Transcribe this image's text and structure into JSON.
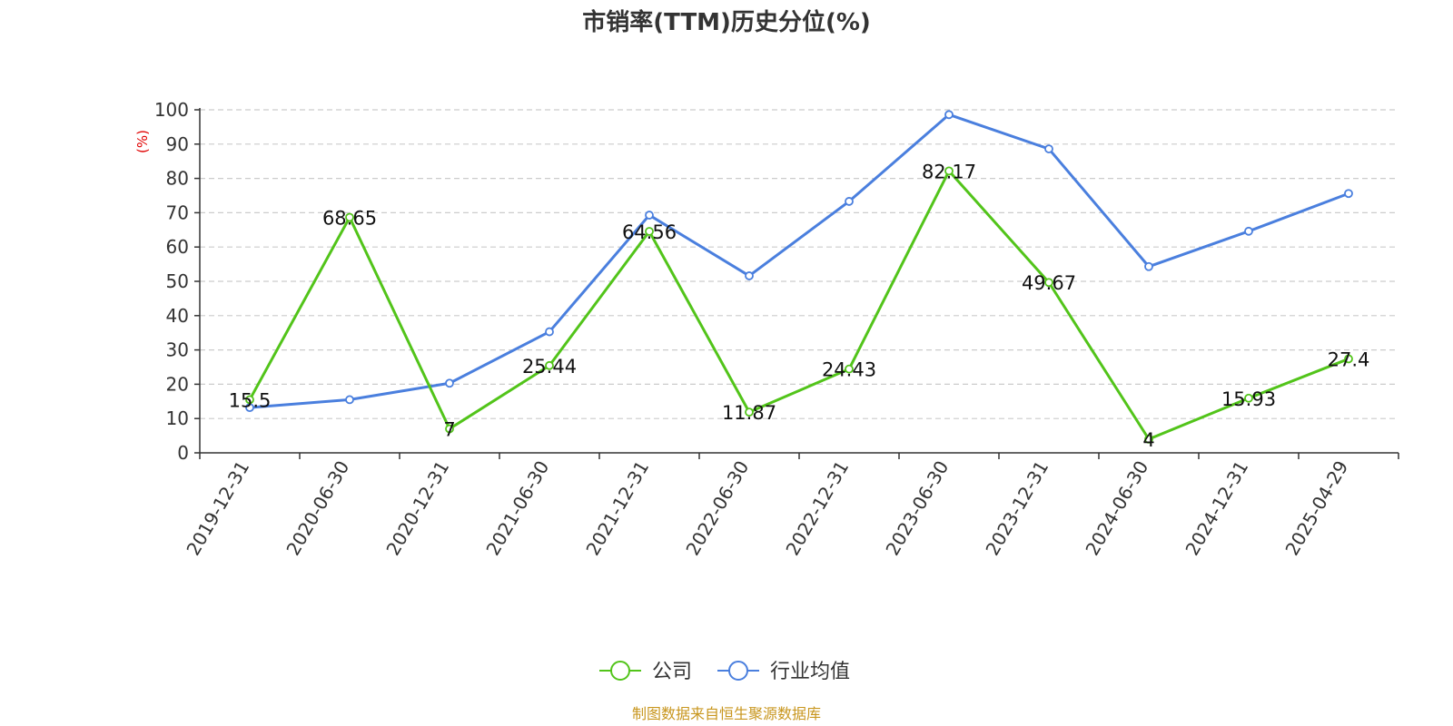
{
  "colors": {
    "company": "#52c41a",
    "industry": "#4a7fde",
    "grid": "#cccccc",
    "axis": "#333333",
    "ylabel": "#e00000",
    "footer": "#c8961e"
  },
  "footer": "制图数据来自恒生聚源数据库",
  "chart_data": {
    "type": "line",
    "title": "市销率(TTM)历史分位(%)",
    "ylabel": "(%)",
    "xlabel": "",
    "ylim": [
      0,
      100
    ],
    "yticks": [
      "0",
      "10",
      "20",
      "30",
      "40",
      "50",
      "60",
      "70",
      "80",
      "90",
      "100"
    ],
    "grid": true,
    "legend_position": "bottom-center",
    "categories": [
      "2019-12-31",
      "2020-06-30",
      "2020-12-31",
      "2021-06-30",
      "2021-12-31",
      "2022-06-30",
      "2022-12-31",
      "2023-06-30",
      "2023-12-31",
      "2024-06-30",
      "2024-12-31",
      "2025-04-29"
    ],
    "series": [
      {
        "name": "公司",
        "color": "#52c41a",
        "values": [
          15.5,
          68.65,
          7,
          25.44,
          64.56,
          11.87,
          24.43,
          82.17,
          49.67,
          4,
          15.93,
          27.4
        ],
        "labels": [
          "15.5",
          "68.65",
          "7",
          "25.44",
          "64.56",
          "11.87",
          "24.43",
          "82.17",
          "49.67",
          "4",
          "15.93",
          "27.4"
        ]
      },
      {
        "name": "行业均值",
        "color": "#4a7fde",
        "values": [
          13.2,
          15.5,
          20.3,
          35.3,
          69.3,
          51.6,
          73.3,
          98.6,
          88.6,
          54.3,
          64.6,
          75.6
        ]
      }
    ]
  }
}
